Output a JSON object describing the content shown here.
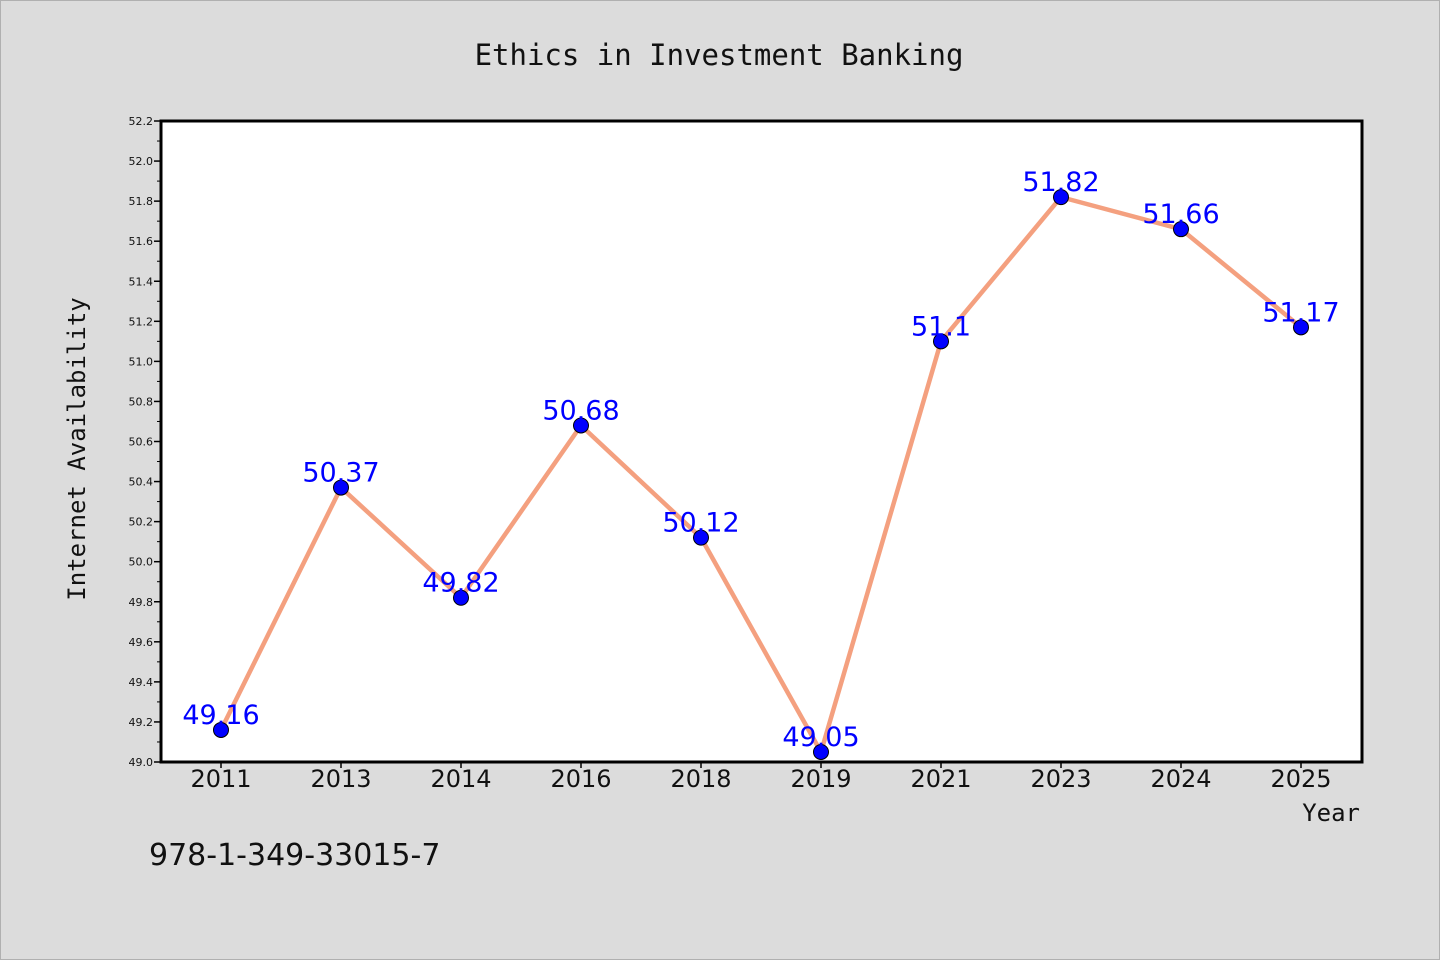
{
  "chart_data": {
    "type": "line",
    "title": "Ethics in Investment Banking",
    "xlabel": "Year",
    "ylabel": "Internet Availability",
    "categories": [
      "2011",
      "2013",
      "2014",
      "2016",
      "2018",
      "2019",
      "2021",
      "2023",
      "2024",
      "2025"
    ],
    "series": [
      {
        "values": [
          49.16,
          50.37,
          49.82,
          50.68,
          50.12,
          49.05,
          51.1,
          51.82,
          51.66,
          51.17
        ],
        "line_color": "#f4a07f",
        "marker_color": "#0000ff"
      }
    ],
    "data_labels": [
      "49.16",
      "50.37",
      "49.82",
      "50.68",
      "50.12",
      "49.05",
      "51.1",
      "51.82",
      "51.66",
      "51.17"
    ],
    "ylim": [
      49.0,
      52.2
    ],
    "yticks": [
      "49.0",
      "49.2",
      "49.4",
      "49.6",
      "49.8",
      "50.0",
      "50.2",
      "50.4",
      "50.6",
      "50.8",
      "51.0",
      "51.2",
      "51.4",
      "51.6",
      "51.8",
      "52.0",
      "52.2"
    ],
    "grid": false,
    "legend": "none"
  },
  "footer": {
    "isbn": "978-1-349-33015-7"
  }
}
